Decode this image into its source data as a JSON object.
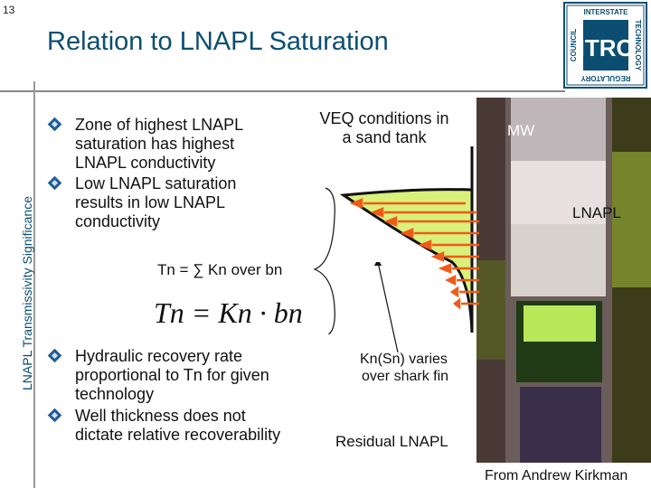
{
  "slide": {
    "page_number": "13",
    "title": "Relation to LNAPL Saturation",
    "side_label": "LNAPL Transmissivity Significance",
    "bullets_top": [
      {
        "lines": [
          "Zone of highest LNAPL",
          "saturation has highest",
          "LNAPL conductivity"
        ]
      },
      {
        "lines": [
          "Low LNAPL saturation",
          "results in low LNAPL",
          "conductivity"
        ]
      }
    ],
    "bullets_bottom": [
      {
        "lines": [
          "Hydraulic recovery rate",
          "proportional to Tn for given",
          "technology"
        ]
      },
      {
        "lines": [
          "Well thickness does not",
          "dictate relative recoverability"
        ]
      }
    ],
    "veq_label": [
      "VEQ conditions in",
      "a sand tank"
    ],
    "mw_label": "MW",
    "lnapl_label": "LNAPL",
    "tn_formula": "Tn  = ∑ Kn over bn",
    "equation": "Tn = Kn · bn",
    "kn_label": [
      "Kn(Sn) varies",
      "over shark fin"
    ],
    "residual_label": "Residual LNAPL",
    "credit": "From Andrew Kirkman",
    "logo": {
      "top": "INTERSTATE",
      "right": "TECHNOLOGY",
      "bottom": "REGULATORY",
      "left": "COUNCIL",
      "center": "ITRC"
    }
  },
  "colors": {
    "title": "#0b4e72",
    "fin_fill": "#d9f07a",
    "arrow": "#f05a16",
    "bullet": "#1f5c99"
  }
}
